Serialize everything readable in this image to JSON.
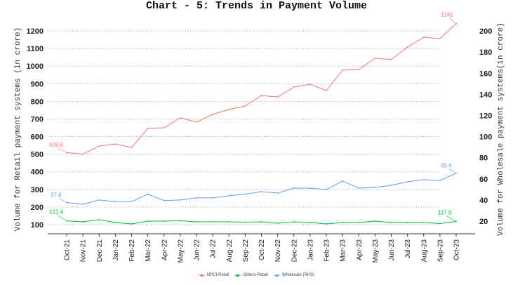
{
  "title": "Chart - 5: Trends in Payment Volume",
  "colors": {
    "npci_retail": "#f8766d",
    "others_retail": "#00ba38",
    "wholesale": "#619cff",
    "grid": "#9a9a9a",
    "axis": "#333333"
  },
  "left_axis": {
    "title": "Volume for Retail payment systems (in crore)",
    "ticks": [
      "100",
      "200",
      "300",
      "400",
      "500",
      "600",
      "700",
      "800",
      "900",
      "1000",
      "1100",
      "1200"
    ]
  },
  "right_axis": {
    "title": "Volume for Wholesale payment systems(in crore)",
    "ticks": [
      "20",
      "40",
      "60",
      "80",
      "100",
      "120",
      "140",
      "160",
      "180",
      "200"
    ]
  },
  "legend": [
    {
      "label": "NPCI-Retail",
      "key": "npci_retail"
    },
    {
      "label": "Others-Retail",
      "key": "others_retail"
    },
    {
      "label": "Wholesale (RHS)",
      "key": "wholesale"
    }
  ],
  "annotations": {
    "npci_start": "509.6",
    "npci_end": "1241",
    "wholesale_start": "37.6",
    "wholesale_end": "65.4",
    "others_start": "121.4",
    "others_end": "117.9"
  },
  "chart_data": {
    "type": "line",
    "title": "Chart - 5: Trends in Payment Volume",
    "xlabel": "",
    "ylabel": "Volume for Retail payment systems (in crore)",
    "y2label": "Volume for Wholesale payment systems(in crore)",
    "ylim": [
      60,
      1270
    ],
    "y2lim": [
      10,
      210
    ],
    "grid": true,
    "legend_position": "bottom",
    "categories": [
      "Oct-21",
      "Nov-21",
      "Dec-21",
      "Jan-22",
      "Feb-22",
      "Mar-22",
      "Apr-22",
      "May-22",
      "Jun-22",
      "Jul-22",
      "Aug-22",
      "Sep-22",
      "Oct-22",
      "Nov-22",
      "Dec-22",
      "Jan-23",
      "Feb-23",
      "Mar-23",
      "Apr-23",
      "May-23",
      "Jun-23",
      "Jul-23",
      "Aug-23",
      "Sep-23",
      "Oct-23"
    ],
    "series": [
      {
        "name": "NPCI-Retail",
        "axis": "left",
        "values": [
          509.6,
          500,
          546,
          558,
          538,
          646,
          650,
          706,
          682,
          726,
          754,
          774,
          833,
          825,
          881,
          897,
          861,
          977,
          981,
          1045,
          1037,
          1108,
          1164,
          1156,
          1241
        ]
      },
      {
        "name": "Others-Retail",
        "axis": "left",
        "values": [
          121.4,
          116,
          128,
          112,
          104,
          120,
          120,
          122,
          116,
          116,
          116,
          114,
          116,
          108,
          116,
          112,
          104,
          112,
          112,
          120,
          112,
          113,
          112,
          106,
          117.9
        ]
      },
      {
        "name": "Wholesale (RHS)",
        "axis": "right",
        "values": [
          37.6,
          36.0,
          40.0,
          38.5,
          38.5,
          45.5,
          39.5,
          40.0,
          42.0,
          42.0,
          44.0,
          45.5,
          47.9,
          46.6,
          51.2,
          51.2,
          49.9,
          57.9,
          51.2,
          51.9,
          53.9,
          57.2,
          59.2,
          58.5,
          65.4
        ]
      }
    ]
  }
}
